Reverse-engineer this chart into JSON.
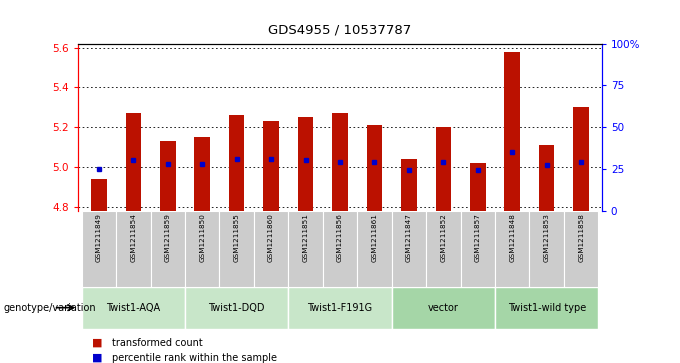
{
  "title": "GDS4955 / 10537787",
  "samples": [
    "GSM1211849",
    "GSM1211854",
    "GSM1211859",
    "GSM1211850",
    "GSM1211855",
    "GSM1211860",
    "GSM1211851",
    "GSM1211856",
    "GSM1211861",
    "GSM1211847",
    "GSM1211852",
    "GSM1211857",
    "GSM1211848",
    "GSM1211853",
    "GSM1211858"
  ],
  "transformed_counts": [
    4.94,
    5.27,
    5.13,
    5.15,
    5.26,
    5.23,
    5.25,
    5.27,
    5.21,
    5.04,
    5.2,
    5.02,
    5.58,
    5.11,
    5.3
  ],
  "percentile_ranks": [
    25,
    30,
    28,
    28,
    31,
    31,
    30,
    29,
    29,
    24,
    29,
    24,
    35,
    27,
    29
  ],
  "groups": [
    {
      "label": "Twist1-AQA",
      "indices": [
        0,
        1,
        2
      ]
    },
    {
      "label": "Twist1-DQD",
      "indices": [
        3,
        4,
        5
      ]
    },
    {
      "label": "Twist1-F191G",
      "indices": [
        6,
        7,
        8
      ]
    },
    {
      "label": "vector",
      "indices": [
        9,
        10,
        11
      ]
    },
    {
      "label": "Twist1-wild type",
      "indices": [
        12,
        13,
        14
      ]
    }
  ],
  "group_colors": [
    "#c8e6c9",
    "#c8e6c9",
    "#c8e6c9",
    "#a5d6a7",
    "#a5d6a7"
  ],
  "ylim_left": [
    4.78,
    5.62
  ],
  "ylim_right": [
    0,
    100
  ],
  "yticks_left": [
    4.8,
    5.0,
    5.2,
    5.4,
    5.6
  ],
  "yticks_right": [
    0,
    25,
    50,
    75,
    100
  ],
  "ytick_labels_right": [
    "0",
    "25",
    "50",
    "75",
    "100%"
  ],
  "bar_color": "#bb1100",
  "marker_color": "#0000cc",
  "bar_width": 0.45,
  "baseline": 4.78,
  "genotype_label": "genotype/variation",
  "sample_bg_color": "#cccccc",
  "legend_items": [
    {
      "label": "transformed count",
      "color": "#bb1100"
    },
    {
      "label": "percentile rank within the sample",
      "color": "#0000cc"
    }
  ]
}
